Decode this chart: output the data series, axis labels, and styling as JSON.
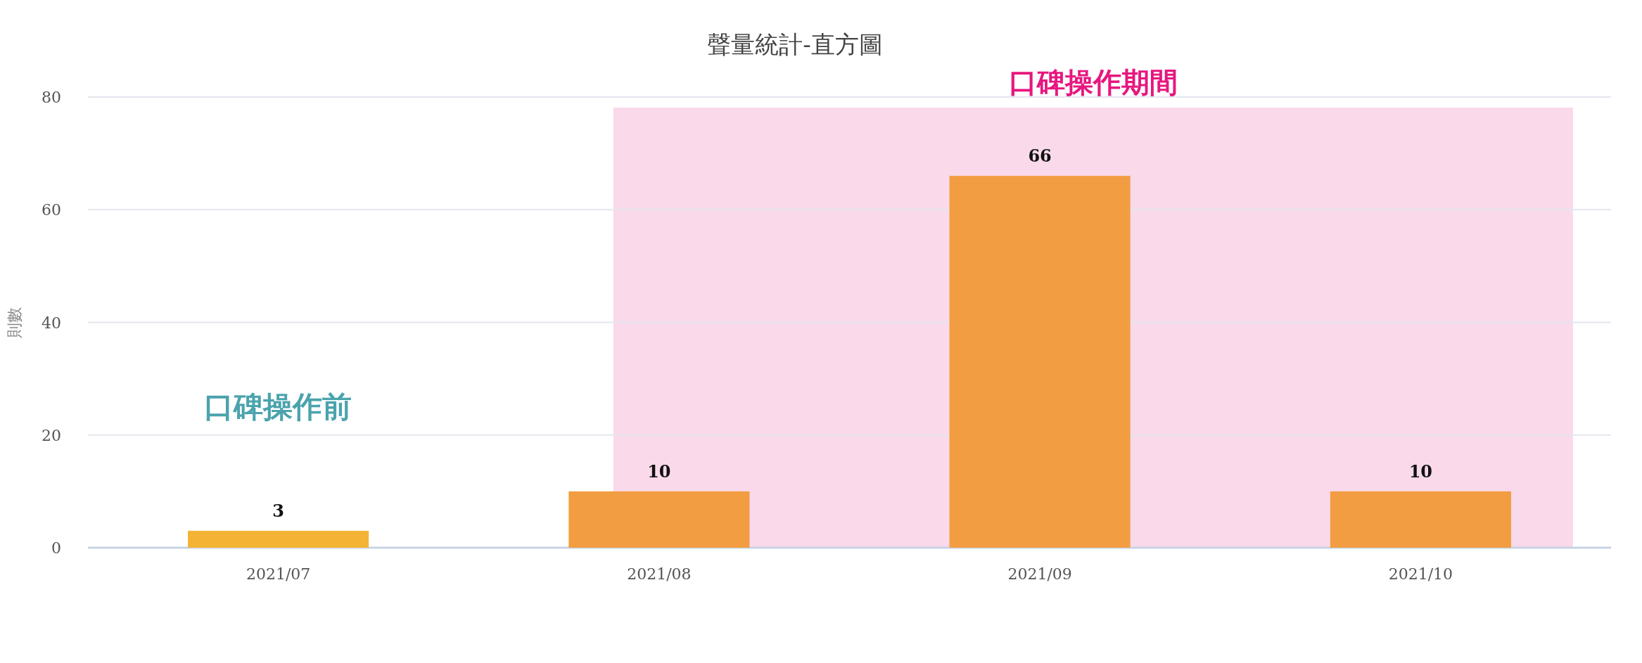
{
  "chart_data": {
    "type": "bar",
    "title": "聲量統計-直方圖",
    "ylabel": "則數",
    "categories": [
      "2021/07",
      "2021/08",
      "2021/09",
      "2021/10"
    ],
    "values": [
      3,
      10,
      66,
      10
    ],
    "colors": [
      "#f5b335",
      "#f29d41",
      "#f29d41",
      "#f29d41"
    ],
    "ylim": [
      0,
      80
    ],
    "yticks": [
      0,
      20,
      40,
      60,
      80
    ],
    "grid": "y",
    "data_labels": true,
    "bands": [
      {
        "axis": "x",
        "from": "2021/08",
        "to": "2021/10",
        "label": "口碑操作期間",
        "color": "#f9d9ea"
      }
    ],
    "annotations": [
      "口碑操作前"
    ]
  }
}
